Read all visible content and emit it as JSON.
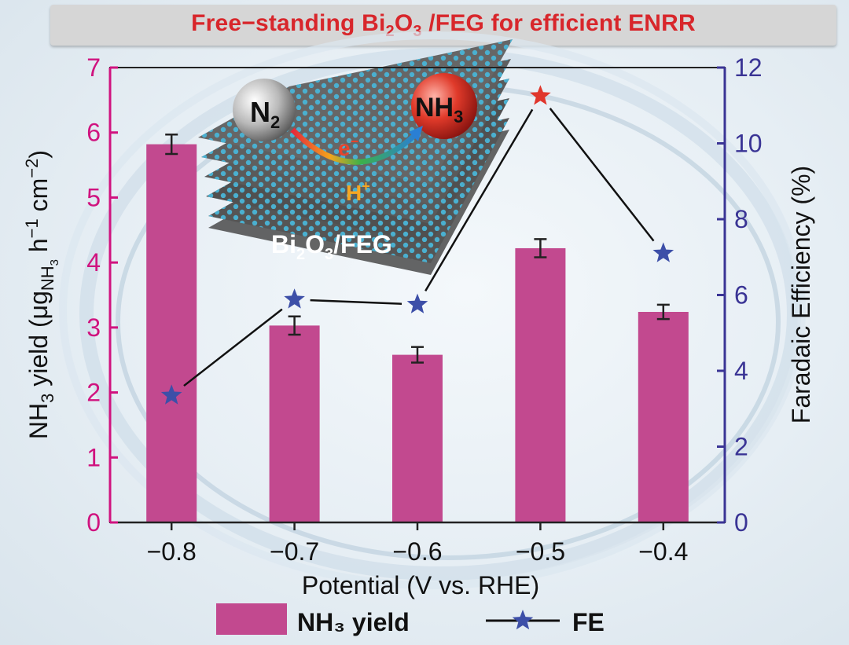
{
  "title": {
    "prefix": "Free−standing Bi",
    "sub1": "2",
    "mid": "O",
    "sub2": "3",
    "suffix": " /FEG for efficient ENRR"
  },
  "colors": {
    "title": "#d8262b",
    "bars": "#c2498f",
    "left_axis": "#d0137f",
    "right_axis": "#3a3495",
    "fe_marker": "#3d4fa8",
    "fe_max_marker": "#e0362c",
    "line": "#111111"
  },
  "inset": {
    "n2_label": "N",
    "n2_sub": "2",
    "nh3_label": "NH",
    "nh3_sub": "3",
    "electron": "e",
    "electron_sup": "−",
    "proton": "H",
    "proton_sup": "+",
    "material_a": "Bi",
    "material_sub1": "2",
    "material_b": "O",
    "material_sub2": "3",
    "material_c": "/FEG"
  },
  "chart_data": {
    "type": "bar",
    "x": [
      -0.8,
      -0.7,
      -0.6,
      -0.5,
      -0.4
    ],
    "x_tick_labels": [
      "−0.8",
      "−0.7",
      "−0.6",
      "−0.5",
      "−0.4"
    ],
    "xlabel": "Potential (V vs. RHE)",
    "xlim": [
      -0.85,
      -0.35
    ],
    "left_axis": {
      "label_parts": [
        "NH",
        "3",
        " yield (μg",
        "NH",
        "3",
        " h",
        "−1",
        " cm",
        "−2",
        ")"
      ],
      "ylim": [
        0,
        7
      ],
      "ticks": [
        0,
        1,
        2,
        3,
        4,
        5,
        6,
        7
      ]
    },
    "right_axis": {
      "label": "Faradaic Efficiency (%)",
      "ylim": [
        0,
        12
      ],
      "ticks": [
        0,
        2,
        4,
        6,
        8,
        10,
        12
      ]
    },
    "series": [
      {
        "name": "NH3 yield",
        "kind": "bar",
        "axis": "left",
        "values": [
          5.82,
          3.03,
          2.58,
          4.22,
          3.24
        ],
        "errors": [
          0.15,
          0.14,
          0.12,
          0.14,
          0.11
        ]
      },
      {
        "name": "FE",
        "kind": "line-star",
        "axis": "right",
        "values": [
          3.35,
          5.88,
          5.75,
          11.25,
          7.1
        ],
        "highlight_index": 3
      }
    ],
    "legend": {
      "placement": "bottom",
      "bar_label": "NH₃ yield",
      "line_label": "FE"
    },
    "grid": false
  }
}
